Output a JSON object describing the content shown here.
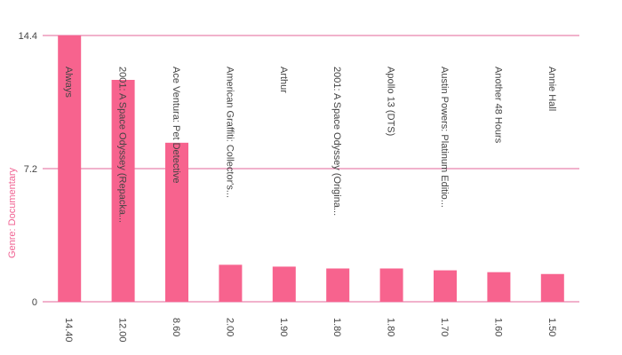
{
  "chart_data": {
    "type": "bar",
    "title": "",
    "xlabel": "",
    "ylabel": "Genre: Documentary",
    "ylim": [
      0,
      14.4
    ],
    "yticks": [
      "0",
      "7.2",
      "14.4"
    ],
    "ytick_values": [
      0,
      7.2,
      14.4
    ],
    "grid": true,
    "bar_color": "#f7638e",
    "grid_color": "#e3649a",
    "categories": [
      "Always",
      "2001: A Space Odyssey (Repacka...",
      "Ace Ventura: Pet Detective",
      "American Graffiti: Collector's...",
      "Arthur",
      "2001: A Space Odyssey (Origina...",
      "Apollo 13 (DTS)",
      "Austin Powers: Platinum Editio...",
      "Another 48 Hours",
      "Annie Hall"
    ],
    "values": [
      14.4,
      12.0,
      8.6,
      2.0,
      1.9,
      1.8,
      1.8,
      1.7,
      1.6,
      1.5
    ],
    "value_labels": [
      "14.40",
      "12.00",
      "8.60",
      "2.00",
      "1.90",
      "1.80",
      "1.80",
      "1.70",
      "1.60",
      "1.50"
    ]
  }
}
